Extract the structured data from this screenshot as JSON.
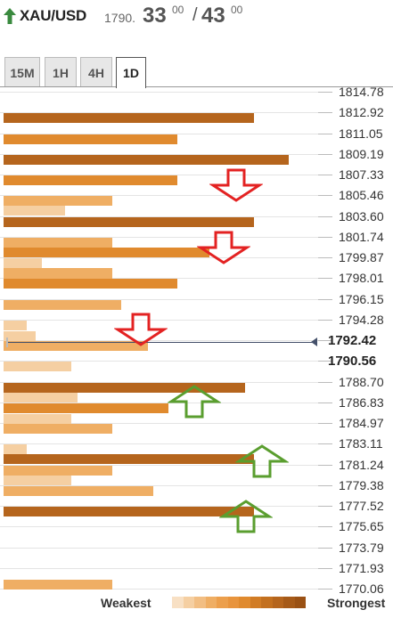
{
  "header": {
    "symbol": "XAU/USD",
    "bid_base": "1790.",
    "bid_big": "33",
    "bid_sup": "00",
    "separator": "/",
    "ask_big": "43",
    "ask_sup": "00"
  },
  "tabs": [
    {
      "label": "15M",
      "active": false
    },
    {
      "label": "1H",
      "active": false
    },
    {
      "label": "4H",
      "active": false
    },
    {
      "label": "1D",
      "active": true
    }
  ],
  "price_labels": [
    "1814.78",
    "1812.92",
    "1811.05",
    "1809.19",
    "1807.33",
    "1805.46",
    "1803.60",
    "1801.74",
    "1799.87",
    "1798.01",
    "1796.15",
    "1794.28",
    "1792.42",
    "1790.56",
    "1788.70",
    "1786.83",
    "1784.97",
    "1783.11",
    "1781.24",
    "1779.38",
    "1777.52",
    "1775.65",
    "1773.79",
    "1771.93",
    "1770.06"
  ],
  "current_price": "1790.56",
  "colors": {
    "strongest": "#b5651d",
    "strong": "#e08a2e",
    "medium": "#efae64",
    "weak": "#f5cfa2",
    "current_line": "#44506a",
    "resistance_arrow": "#e32222",
    "support_arrow": "#5a9e2f"
  },
  "confluence_bars": [
    {
      "price": 1812.92,
      "strength": 0.85
    },
    {
      "price": 1811.05,
      "strength": 0.59
    },
    {
      "price": 1809.19,
      "strength": 0.97
    },
    {
      "price": 1807.33,
      "strength": 0.59
    },
    {
      "price": 1805.46,
      "strength": 0.37
    },
    {
      "price": 1805.46,
      "strength": 0.21,
      "lower": true
    },
    {
      "price": 1803.6,
      "strength": 0.85
    },
    {
      "price": 1801.74,
      "strength": 0.37
    },
    {
      "price": 1801.74,
      "strength": 0.7,
      "lower": true
    },
    {
      "price": 1799.87,
      "strength": 0.13
    },
    {
      "price": 1799.87,
      "strength": 0.37,
      "lower": true
    },
    {
      "price": 1798.01,
      "strength": 0.37,
      "upper": true
    },
    {
      "price": 1798.01,
      "strength": 0.59
    },
    {
      "price": 1796.15,
      "strength": 0.4
    },
    {
      "price": 1794.28,
      "strength": 0.08
    },
    {
      "price": 1792.42,
      "strength": 0.11,
      "upper": true
    },
    {
      "price": 1792.42,
      "strength": 0.49
    },
    {
      "price": 1790.56,
      "strength": 0.23
    },
    {
      "price": 1788.7,
      "strength": 0.82
    },
    {
      "price": 1788.7,
      "strength": 0.25,
      "lower": true
    },
    {
      "price": 1786.83,
      "strength": 0.56
    },
    {
      "price": 1784.97,
      "strength": 0.23,
      "upper": true
    },
    {
      "price": 1784.97,
      "strength": 0.37
    },
    {
      "price": 1783.11,
      "strength": 0.08
    },
    {
      "price": 1783.11,
      "strength": 0.85,
      "lower": true
    },
    {
      "price": 1781.24,
      "strength": 0.37
    },
    {
      "price": 1781.24,
      "strength": 0.23,
      "lower": true
    },
    {
      "price": 1779.38,
      "strength": 0.51
    },
    {
      "price": 1777.52,
      "strength": 0.85
    },
    {
      "price": 1770.06,
      "strength": 0.37,
      "upper": true
    }
  ],
  "arrows": [
    {
      "dir": "down",
      "price": 1806.4,
      "x": 0.74
    },
    {
      "dir": "down",
      "price": 1800.8,
      "x": 0.7
    },
    {
      "dir": "down",
      "price": 1793.4,
      "x": 0.44
    },
    {
      "dir": "up",
      "price": 1786.9,
      "x": 0.61
    },
    {
      "dir": "up",
      "price": 1781.5,
      "x": 0.82
    },
    {
      "dir": "up",
      "price": 1776.6,
      "x": 0.77
    }
  ],
  "legend": {
    "weakest": "Weakest",
    "strongest": "Strongest",
    "scale": [
      "#f8e0c4",
      "#f5cfa2",
      "#f2be83",
      "#efae64",
      "#ec9f4c",
      "#e8943d",
      "#e08a2e",
      "#d17c25",
      "#c3701f",
      "#b5651d",
      "#a65a18",
      "#9a5114"
    ]
  }
}
